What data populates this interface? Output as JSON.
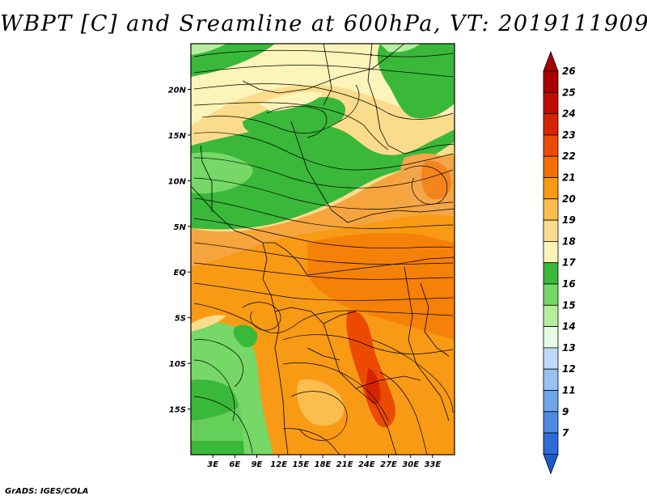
{
  "title": "WBPT [C] and Sreamline at 600hPa, VT: 2019111909",
  "credit": "GrADS: IGES/COLA",
  "map": {
    "lon_range": [
      0,
      36
    ],
    "lat_range": [
      -20,
      25
    ],
    "lon_ticks": [
      {
        "value": 3,
        "label": "3E"
      },
      {
        "value": 6,
        "label": "6E"
      },
      {
        "value": 9,
        "label": "9E"
      },
      {
        "value": 12,
        "label": "12E"
      },
      {
        "value": 15,
        "label": "15E"
      },
      {
        "value": 18,
        "label": "18E"
      },
      {
        "value": 21,
        "label": "21E"
      },
      {
        "value": 24,
        "label": "24E"
      },
      {
        "value": 27,
        "label": "27E"
      },
      {
        "value": 30,
        "label": "30E"
      },
      {
        "value": 33,
        "label": "33E"
      }
    ],
    "lat_ticks": [
      {
        "value": 20,
        "label": "20N"
      },
      {
        "value": 15,
        "label": "15N"
      },
      {
        "value": 10,
        "label": "10N"
      },
      {
        "value": 5,
        "label": "5N"
      },
      {
        "value": 0,
        "label": "EQ"
      },
      {
        "value": -5,
        "label": "5S"
      },
      {
        "value": -10,
        "label": "10S"
      },
      {
        "value": -15,
        "label": "15S"
      }
    ]
  },
  "colorbar": {
    "levels": [
      {
        "label": "26",
        "color": "#a80000"
      },
      {
        "label": "25",
        "color": "#c00c00"
      },
      {
        "label": "24",
        "color": "#d72400"
      },
      {
        "label": "23",
        "color": "#ec4a00"
      },
      {
        "label": "22",
        "color": "#f46e00"
      },
      {
        "label": "21",
        "color": "#f99a14"
      },
      {
        "label": "20",
        "color": "#fbbd4e"
      },
      {
        "label": "19",
        "color": "#fbdc8c"
      },
      {
        "label": "18",
        "color": "#fdf4ba"
      },
      {
        "label": "17",
        "color": "#3ab83a"
      },
      {
        "label": "16",
        "color": "#76d866"
      },
      {
        "label": "15",
        "color": "#b6ee9e"
      },
      {
        "label": "14",
        "color": "#e6fae4"
      },
      {
        "label": "13",
        "color": "#bedaf8"
      },
      {
        "label": "12",
        "color": "#96c2f4"
      },
      {
        "label": "11",
        "color": "#6ea6ec"
      },
      {
        "label": "9",
        "color": "#4c8ae4"
      },
      {
        "label": "7",
        "color": "#2c6cd8"
      }
    ],
    "bottom_color": "#1a5ccc"
  }
}
